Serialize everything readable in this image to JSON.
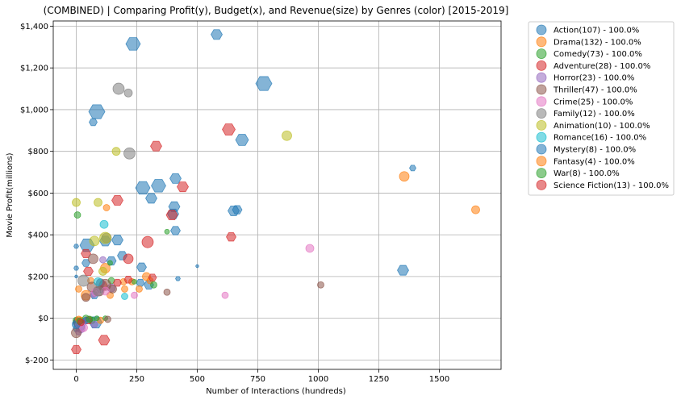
{
  "chart_data": {
    "type": "scatter",
    "title": "(COMBINED) | Comparing Profit(y), Budget(x), and Revenue(size) by Genres (color) [2015-2019]",
    "xlabel": "Number of Interactions (hundreds)",
    "ylabel": "Movie Profit(millions)",
    "xlim": [
      -95,
      1755
    ],
    "ylim": [
      -245,
      1425
    ],
    "xticks": [
      0,
      250,
      500,
      750,
      1000,
      1250,
      1500
    ],
    "yticks": [
      -200,
      0,
      200,
      400,
      600,
      800,
      1000,
      1200,
      1400
    ],
    "ytick_labels": [
      "$-200",
      "$0",
      "$200",
      "$400",
      "$600",
      "$800",
      "$1,000",
      "$1,200",
      "$1,400"
    ],
    "grid": true,
    "legend_position": "outside-right",
    "series": [
      {
        "name": "Action(107) - 100.0%",
        "color": "#1f77b4",
        "marker": "hexagon",
        "points": [
          [
            235,
            1315,
            9
          ],
          [
            580,
            1360,
            7
          ],
          [
            775,
            1125,
            10
          ],
          [
            85,
            990,
            10
          ],
          [
            70,
            940,
            5
          ],
          [
            685,
            855,
            8
          ],
          [
            410,
            670,
            7
          ],
          [
            275,
            625,
            9
          ],
          [
            340,
            635,
            9
          ],
          [
            310,
            575,
            7
          ],
          [
            405,
            535,
            7
          ],
          [
            400,
            500,
            7
          ],
          [
            665,
            520,
            6
          ],
          [
            650,
            515,
            7
          ],
          [
            410,
            420,
            6
          ],
          [
            1390,
            720,
            4
          ],
          [
            45,
            350,
            9
          ],
          [
            120,
            370,
            7
          ],
          [
            170,
            375,
            7
          ],
          [
            190,
            300,
            6
          ],
          [
            145,
            275,
            6
          ],
          [
            270,
            245,
            6
          ],
          [
            1350,
            230,
            7
          ],
          [
            420,
            190,
            3
          ],
          [
            265,
            170,
            5
          ],
          [
            300,
            160,
            6
          ],
          [
            500,
            250,
            2
          ],
          [
            0,
            345,
            3
          ],
          [
            0,
            240,
            3
          ],
          [
            0,
            200,
            2
          ],
          [
            40,
            265,
            5
          ],
          [
            75,
            110,
            5
          ],
          [
            100,
            140,
            5
          ],
          [
            5,
            -20,
            6
          ],
          [
            20,
            -40,
            5
          ],
          [
            80,
            -20,
            8
          ],
          [
            0,
            -50,
            4
          ]
        ]
      },
      {
        "name": "Drama(132) - 100.0%",
        "color": "#ff7f0e",
        "marker": "circle",
        "points": [
          [
            1355,
            680,
            6
          ],
          [
            1650,
            520,
            5
          ],
          [
            125,
            530,
            4
          ],
          [
            290,
            200,
            5
          ],
          [
            305,
            180,
            4
          ],
          [
            230,
            175,
            4
          ],
          [
            200,
            140,
            4
          ],
          [
            260,
            140,
            4
          ],
          [
            195,
            175,
            4
          ],
          [
            120,
            240,
            6
          ],
          [
            40,
            110,
            6
          ],
          [
            60,
            180,
            4
          ],
          [
            140,
            110,
            4
          ],
          [
            100,
            -10,
            4
          ],
          [
            20,
            -10,
            4
          ],
          [
            10,
            140,
            4
          ]
        ]
      },
      {
        "name": "Comedy(73) - 100.0%",
        "color": "#2ca02c",
        "marker": "circle",
        "points": [
          [
            5,
            495,
            4
          ],
          [
            375,
            415,
            3
          ],
          [
            140,
            265,
            3
          ],
          [
            145,
            180,
            4
          ],
          [
            320,
            160,
            4
          ],
          [
            240,
            175,
            3
          ],
          [
            100,
            170,
            5
          ],
          [
            40,
            0,
            4
          ],
          [
            0,
            -10,
            4
          ],
          [
            65,
            -10,
            4
          ],
          [
            85,
            0,
            3
          ],
          [
            120,
            0,
            3
          ]
        ]
      },
      {
        "name": "Adventure(28) - 100.0%",
        "color": "#d62728",
        "marker": "hexagon",
        "points": [
          [
            630,
            905,
            8
          ],
          [
            330,
            825,
            7
          ],
          [
            170,
            565,
            7
          ],
          [
            440,
            630,
            7
          ],
          [
            395,
            495,
            7
          ],
          [
            640,
            390,
            6
          ],
          [
            40,
            310,
            6
          ],
          [
            50,
            225,
            6
          ],
          [
            315,
            195,
            5
          ],
          [
            110,
            155,
            6
          ],
          [
            115,
            -105,
            7
          ],
          [
            0,
            -150,
            6
          ],
          [
            50,
            -10,
            5
          ],
          [
            170,
            170,
            5
          ],
          [
            215,
            185,
            5
          ]
        ]
      },
      {
        "name": "Horror(23) - 100.0%",
        "color": "#9467bd",
        "marker": "circle",
        "points": [
          [
            110,
            280,
            4
          ],
          [
            145,
            145,
            5
          ],
          [
            100,
            170,
            5
          ],
          [
            70,
            115,
            4
          ],
          [
            20,
            -50,
            5
          ],
          [
            10,
            -65,
            4
          ],
          [
            30,
            -20,
            4
          ],
          [
            75,
            -30,
            4
          ]
        ]
      },
      {
        "name": "Thriller(47) - 100.0%",
        "color": "#8c564b",
        "marker": "circle",
        "points": [
          [
            1010,
            160,
            4
          ],
          [
            375,
            125,
            4
          ],
          [
            70,
            285,
            6
          ],
          [
            120,
            160,
            7
          ],
          [
            95,
            130,
            6
          ],
          [
            65,
            150,
            6
          ],
          [
            40,
            100,
            5
          ],
          [
            10,
            -20,
            6
          ],
          [
            0,
            -70,
            6
          ],
          [
            130,
            -5,
            4
          ],
          [
            150,
            140,
            5
          ]
        ]
      },
      {
        "name": "Crime(25) - 100.0%",
        "color": "#e377c2",
        "marker": "circle",
        "points": [
          [
            965,
            335,
            5
          ],
          [
            615,
            110,
            4
          ],
          [
            240,
            110,
            4
          ],
          [
            120,
            130,
            5
          ],
          [
            80,
            125,
            5
          ],
          [
            10,
            -30,
            4
          ],
          [
            30,
            -45,
            5
          ]
        ]
      },
      {
        "name": "Family(12) - 100.0%",
        "color": "#7f7f7f",
        "marker": "circle",
        "points": [
          [
            175,
            1100,
            7
          ],
          [
            215,
            1080,
            5
          ],
          [
            220,
            790,
            7
          ],
          [
            125,
            385,
            6
          ],
          [
            30,
            180,
            7
          ],
          [
            90,
            130,
            6
          ]
        ]
      },
      {
        "name": "Animation(10) - 100.0%",
        "color": "#bcbd22",
        "marker": "circle",
        "points": [
          [
            870,
            875,
            6
          ],
          [
            165,
            800,
            5
          ],
          [
            0,
            555,
            5
          ],
          [
            90,
            555,
            5
          ],
          [
            75,
            370,
            6
          ],
          [
            120,
            385,
            7
          ],
          [
            110,
            225,
            5
          ]
        ]
      },
      {
        "name": "Romance(16) - 100.0%",
        "color": "#17becf",
        "marker": "circle",
        "points": [
          [
            115,
            450,
            5
          ],
          [
            200,
            105,
            4
          ],
          [
            90,
            175,
            5
          ]
        ]
      },
      {
        "name": "Mystery(8) - 100.0%",
        "color": "#1f77b4",
        "marker": "circle",
        "points": [
          [
            40,
            -10,
            4
          ],
          [
            0,
            -30,
            5
          ]
        ]
      },
      {
        "name": "Fantasy(4) - 100.0%",
        "color": "#ff7f0e",
        "marker": "circle",
        "points": [
          [
            10,
            -5,
            4
          ]
        ]
      },
      {
        "name": "War(8) - 100.0%",
        "color": "#2ca02c",
        "marker": "circle",
        "points": [
          [
            15,
            -15,
            4
          ],
          [
            55,
            -5,
            4
          ]
        ]
      },
      {
        "name": "Science Fiction(13) - 100.0%",
        "color": "#d62728",
        "marker": "circle",
        "points": [
          [
            295,
            365,
            7
          ],
          [
            215,
            285,
            6
          ],
          [
            20,
            -20,
            4
          ]
        ]
      }
    ]
  }
}
